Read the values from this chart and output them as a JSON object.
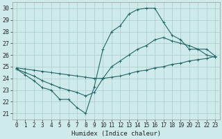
{
  "xlabel": "Humidex (Indice chaleur)",
  "ylabel": "",
  "xlim": [
    -0.5,
    23.5
  ],
  "ylim": [
    20.5,
    30.5
  ],
  "xticks": [
    0,
    1,
    2,
    3,
    4,
    5,
    6,
    7,
    8,
    9,
    10,
    11,
    12,
    13,
    14,
    15,
    16,
    17,
    18,
    19,
    20,
    21,
    22,
    23
  ],
  "yticks": [
    21,
    22,
    23,
    24,
    25,
    26,
    27,
    28,
    29,
    30
  ],
  "background_color": "#ceeaea",
  "grid_color": "#b0d0d0",
  "line_color": "#226666",
  "line1_x": [
    0,
    1,
    2,
    3,
    4,
    5,
    6,
    7,
    8,
    9,
    10,
    11,
    12,
    13,
    14,
    15,
    16,
    17,
    18,
    19,
    20,
    21,
    22,
    23
  ],
  "line1_y": [
    24.8,
    24.3,
    23.8,
    23.2,
    23.0,
    22.2,
    22.2,
    21.5,
    21.0,
    23.3,
    26.5,
    28.0,
    28.5,
    29.5,
    29.9,
    30.0,
    30.0,
    28.8,
    27.7,
    27.3,
    26.5,
    26.5,
    26.0,
    25.8
  ],
  "line2_x": [
    0,
    1,
    2,
    3,
    4,
    5,
    6,
    7,
    8,
    9,
    10,
    11,
    12,
    13,
    14,
    15,
    16,
    17,
    18,
    19,
    20,
    21,
    22,
    23
  ],
  "line2_y": [
    24.8,
    24.5,
    24.2,
    23.8,
    23.5,
    23.2,
    23.0,
    22.8,
    22.5,
    22.8,
    24.0,
    25.0,
    25.5,
    26.0,
    26.5,
    26.8,
    27.3,
    27.5,
    27.2,
    27.0,
    26.8,
    26.5,
    26.5,
    25.9
  ],
  "line3_x": [
    0,
    1,
    2,
    3,
    4,
    5,
    6,
    7,
    8,
    9,
    10,
    11,
    12,
    13,
    14,
    15,
    16,
    17,
    18,
    19,
    20,
    21,
    22,
    23
  ],
  "line3_y": [
    24.9,
    24.8,
    24.7,
    24.6,
    24.5,
    24.4,
    24.3,
    24.2,
    24.1,
    24.0,
    24.0,
    24.1,
    24.2,
    24.4,
    24.6,
    24.7,
    24.9,
    25.0,
    25.2,
    25.3,
    25.5,
    25.6,
    25.7,
    25.9
  ],
  "marker": "+"
}
